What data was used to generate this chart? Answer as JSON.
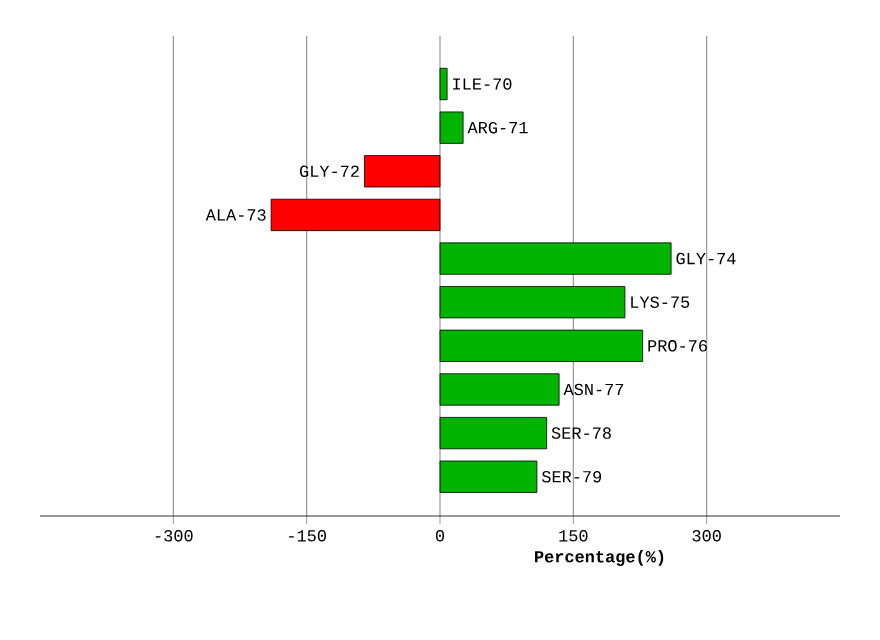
{
  "chart_data": {
    "type": "bar",
    "orientation": "horizontal",
    "xlabel": "Percentage(%)",
    "categories": [
      "ILE-70",
      "ARG-71",
      "GLY-72",
      "ALA-73",
      "GLY-74",
      "LYS-75",
      "PRO-76",
      "ASN-77",
      "SER-78",
      "SER-79"
    ],
    "values": [
      8,
      26,
      -85,
      -190,
      260,
      208,
      228,
      134,
      120,
      109
    ],
    "colors": [
      "#00b400",
      "#00b400",
      "#ff0000",
      "#ff0000",
      "#00b400",
      "#00b400",
      "#00b400",
      "#00b400",
      "#00b400",
      "#00b400"
    ],
    "xlim": [
      -450,
      450
    ],
    "xticks": [
      -300,
      -150,
      0,
      150,
      300
    ],
    "grid": "x",
    "tick_labels": "x"
  }
}
